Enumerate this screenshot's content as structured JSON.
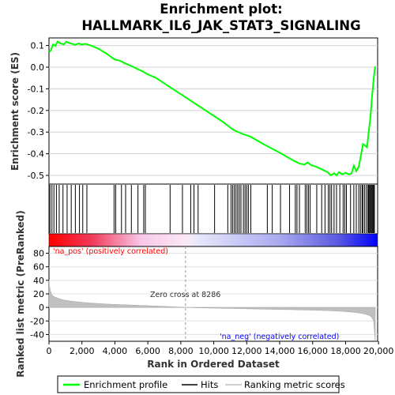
{
  "chart_data": [
    {
      "type": "line",
      "title": "Enrichment plot:\nHALLMARK_IL6_JAK_STAT3_SIGNALING",
      "ylabel": "Enrichment score (ES)",
      "ylim": [
        -0.54,
        0.135
      ],
      "yticks": [
        0.1,
        0.0,
        -0.1,
        -0.2,
        -0.3,
        -0.4,
        -0.5
      ],
      "ytick_labels": [
        "0.1",
        "0.0",
        "-0.1",
        "-0.2",
        "-0.3",
        "-0.4",
        "-0.5"
      ],
      "xlim": [
        0,
        19800
      ],
      "grid": true,
      "series": [
        {
          "name": "Enrichment profile",
          "color": "#00ff00",
          "x": [
            0,
            100,
            250,
            400,
            520,
            700,
            900,
            1050,
            1200,
            1400,
            1600,
            1800,
            2000,
            2200,
            2400,
            2600,
            3000,
            3500,
            3900,
            4000,
            4300,
            4600,
            5000,
            5400,
            5700,
            5900,
            6500,
            7500,
            8500,
            9500,
            10500,
            11200,
            11800,
            12200,
            13000,
            14000,
            14800,
            15200,
            15500,
            15700,
            15900,
            16200,
            16500,
            16900,
            17100,
            17300,
            17450,
            17600,
            17800,
            18000,
            18200,
            18350,
            18500,
            18650,
            18800,
            18950,
            19050,
            19150,
            19300,
            19400,
            19500,
            19550,
            19600,
            19650,
            19700,
            19750,
            19800
          ],
          "y": [
            0.07,
            0.075,
            0.105,
            0.098,
            0.118,
            0.11,
            0.105,
            0.118,
            0.112,
            0.108,
            0.103,
            0.11,
            0.104,
            0.108,
            0.103,
            0.098,
            0.085,
            0.062,
            0.04,
            0.035,
            0.03,
            0.018,
            0.005,
            -0.01,
            -0.02,
            -0.03,
            -0.05,
            -0.1,
            -0.15,
            -0.2,
            -0.25,
            -0.29,
            -0.31,
            -0.32,
            -0.355,
            -0.395,
            -0.43,
            -0.445,
            -0.45,
            -0.44,
            -0.452,
            -0.46,
            -0.47,
            -0.485,
            -0.5,
            -0.49,
            -0.5,
            -0.485,
            -0.495,
            -0.488,
            -0.495,
            -0.492,
            -0.455,
            -0.48,
            -0.46,
            -0.4,
            -0.355,
            -0.36,
            -0.37,
            -0.3,
            -0.24,
            -0.19,
            -0.14,
            -0.1,
            -0.06,
            -0.02,
            0.003
          ]
        }
      ]
    },
    {
      "type": "bar",
      "name": "Hits",
      "x": [
        60,
        180,
        300,
        450,
        620,
        850,
        1100,
        1350,
        1600,
        1850,
        2050,
        2300,
        3950,
        4050,
        4400,
        4650,
        5000,
        5400,
        5750,
        5850,
        7350,
        8100,
        8600,
        8800,
        9050,
        10050,
        10850,
        11050,
        11150,
        11250,
        11350,
        11450,
        11550,
        11650,
        11800,
        11900,
        12000,
        12100,
        12250,
        13250,
        13550,
        14050,
        14600,
        14950,
        15050,
        15200,
        15550,
        15650,
        15750,
        15850,
        16250,
        16550,
        16750,
        16950,
        17050,
        17150,
        17300,
        17450,
        17650,
        17850,
        17950,
        18050,
        18300,
        18500,
        18650,
        18800,
        18900,
        19000,
        19050,
        19150,
        19250,
        19350,
        19400,
        19450,
        19500,
        19550,
        19600,
        19650,
        19700,
        19750
      ]
    },
    {
      "type": "area",
      "name": "Ranking metric scores",
      "ylabel": "Ranked list metric (PreRanked)",
      "xlabel": "Rank in Ordered Dataset",
      "ylim": [
        -50,
        90
      ],
      "yticks": [
        80,
        60,
        40,
        20,
        0,
        -20,
        -40
      ],
      "ytick_labels": [
        "80",
        "60",
        "40",
        "20",
        "0",
        "-20",
        "-40"
      ],
      "xticks": [
        0,
        2000,
        4000,
        6000,
        8000,
        10000,
        12000,
        14000,
        16000,
        18000,
        20000
      ],
      "xtick_labels": [
        "0",
        "2,000",
        "4,000",
        "6,000",
        "8,000",
        "10,000",
        "12,000",
        "14,000",
        "16,000",
        "18,000",
        "20,000"
      ],
      "x": [
        0,
        30,
        80,
        150,
        250,
        400,
        600,
        900,
        1300,
        1800,
        2500,
        3500,
        4500,
        5500,
        6500,
        7500,
        8286,
        9000,
        10000,
        11000,
        12000,
        13000,
        14000,
        15000,
        16000,
        17000,
        17800,
        18400,
        18900,
        19200,
        19450,
        19600,
        19700,
        19750,
        19800
      ],
      "y": [
        40,
        32,
        25,
        20,
        17,
        15,
        13,
        11,
        9.5,
        8,
        6.5,
        5,
        4,
        3,
        2,
        1,
        0,
        -0.5,
        -1,
        -1.5,
        -2,
        -2.5,
        -3,
        -3.5,
        -4,
        -4.8,
        -5.8,
        -7,
        -8.5,
        -10,
        -12,
        -15,
        -20,
        -35,
        -50
      ]
    }
  ],
  "annotations": {
    "pos_label": "'na_pos' (positively correlated)",
    "neg_label": "'na_neg' (negatively correlated)",
    "zero_cross": "Zero cross at 8286",
    "zero_cross_x": 8286,
    "pos_color": "#ff0000",
    "neg_color": "#0000ff"
  },
  "legend": {
    "items": [
      {
        "label": "Enrichment profile",
        "color": "#00ff00"
      },
      {
        "label": "Hits",
        "color": "#000000"
      },
      {
        "label": "Ranking metric scores",
        "color": "#c0c0c0"
      }
    ]
  }
}
